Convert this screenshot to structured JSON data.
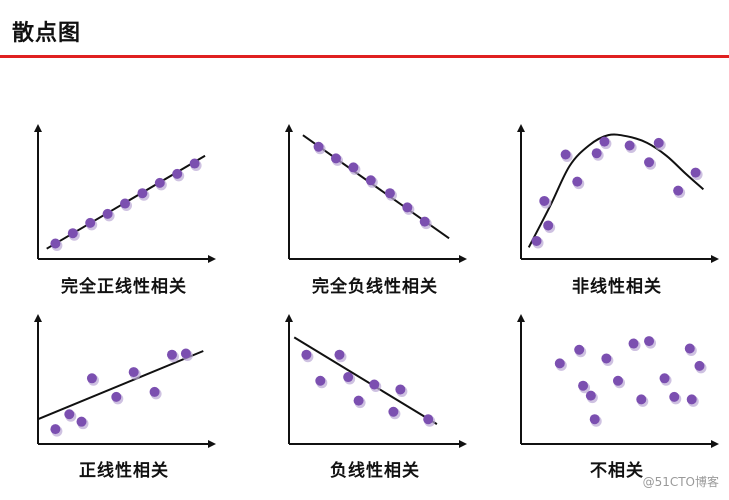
{
  "page": {
    "title": "散点图",
    "watermark": "@51CTO博客"
  },
  "colors": {
    "accent_rule": "#e02020",
    "point": "#7b4fb0",
    "point_shadow": "#b9a6d4",
    "axis": "#111111"
  },
  "chart_data": [
    {
      "type": "scatter",
      "title": "完全正线性相关",
      "xlim": [
        0,
        10
      ],
      "ylim": [
        0,
        10
      ],
      "points": [
        [
          1.0,
          1.2
        ],
        [
          2.0,
          2.0
        ],
        [
          3.0,
          2.8
        ],
        [
          4.0,
          3.5
        ],
        [
          5.0,
          4.3
        ],
        [
          6.0,
          5.1
        ],
        [
          7.0,
          5.9
        ],
        [
          8.0,
          6.6
        ],
        [
          9.0,
          7.4
        ]
      ],
      "fit": {
        "kind": "line",
        "points": [
          [
            0.5,
            0.8
          ],
          [
            9.6,
            8.0
          ]
        ]
      }
    },
    {
      "type": "scatter",
      "title": "完全负线性相关",
      "xlim": [
        0,
        10
      ],
      "ylim": [
        0,
        10
      ],
      "points": [
        [
          1.7,
          8.7
        ],
        [
          2.7,
          7.8
        ],
        [
          3.7,
          7.1
        ],
        [
          4.7,
          6.1
        ],
        [
          5.8,
          5.1
        ],
        [
          6.8,
          4.0
        ],
        [
          7.8,
          2.9
        ]
      ],
      "fit": {
        "kind": "line",
        "points": [
          [
            0.8,
            9.6
          ],
          [
            9.2,
            1.6
          ]
        ]
      }
    },
    {
      "type": "scatter",
      "title": "非线性相关",
      "xlim": [
        0,
        10
      ],
      "ylim": [
        0,
        10
      ],
      "points": [
        [
          0.8,
          1.4
        ],
        [
          1.2,
          4.5
        ],
        [
          1.4,
          2.6
        ],
        [
          2.3,
          8.1
        ],
        [
          2.9,
          6.0
        ],
        [
          3.9,
          8.2
        ],
        [
          4.3,
          9.1
        ],
        [
          5.6,
          8.8
        ],
        [
          6.6,
          7.5
        ],
        [
          7.1,
          9.0
        ],
        [
          8.1,
          5.3
        ],
        [
          9.0,
          6.7
        ]
      ],
      "fit": {
        "kind": "curve",
        "points": [
          [
            0.4,
            0.9
          ],
          [
            1.5,
            4.1
          ],
          [
            2.5,
            7.2
          ],
          [
            3.5,
            8.8
          ],
          [
            4.5,
            9.6
          ],
          [
            5.5,
            9.5
          ],
          [
            6.5,
            9.0
          ],
          [
            7.5,
            8.0
          ],
          [
            8.5,
            6.6
          ],
          [
            9.4,
            5.4
          ]
        ]
      }
    },
    {
      "type": "scatter",
      "title": "正线性相关",
      "xlim": [
        0,
        10
      ],
      "ylim": [
        0,
        10
      ],
      "points": [
        [
          1.0,
          1.2
        ],
        [
          1.8,
          2.4
        ],
        [
          2.5,
          1.8
        ],
        [
          3.1,
          5.3
        ],
        [
          4.5,
          3.8
        ],
        [
          5.5,
          5.8
        ],
        [
          6.7,
          4.2
        ],
        [
          7.7,
          7.2
        ],
        [
          8.5,
          7.3
        ]
      ],
      "fit": {
        "kind": "line",
        "points": [
          [
            0.0,
            2.0
          ],
          [
            9.5,
            7.5
          ]
        ]
      }
    },
    {
      "type": "scatter",
      "title": "负线性相关",
      "xlim": [
        0,
        10
      ],
      "ylim": [
        0,
        10
      ],
      "points": [
        [
          1.0,
          7.2
        ],
        [
          1.8,
          5.1
        ],
        [
          2.9,
          7.2
        ],
        [
          3.4,
          5.4
        ],
        [
          4.0,
          3.5
        ],
        [
          4.9,
          4.8
        ],
        [
          6.0,
          2.6
        ],
        [
          6.4,
          4.4
        ],
        [
          8.0,
          2.0
        ]
      ],
      "fit": {
        "kind": "line",
        "points": [
          [
            0.3,
            8.6
          ],
          [
            8.5,
            1.6
          ]
        ]
      }
    },
    {
      "type": "scatter",
      "title": "不相关",
      "xlim": [
        0,
        10
      ],
      "ylim": [
        0,
        10
      ],
      "points": [
        [
          2.0,
          6.5
        ],
        [
          3.0,
          7.6
        ],
        [
          3.6,
          3.9
        ],
        [
          3.2,
          4.7
        ],
        [
          3.8,
          2.0
        ],
        [
          4.4,
          6.9
        ],
        [
          5.0,
          5.1
        ],
        [
          5.8,
          8.1
        ],
        [
          6.2,
          3.6
        ],
        [
          6.6,
          8.3
        ],
        [
          7.4,
          5.3
        ],
        [
          7.9,
          3.8
        ],
        [
          8.7,
          7.7
        ],
        [
          8.8,
          3.6
        ],
        [
          9.2,
          6.3
        ]
      ],
      "fit": null
    }
  ]
}
